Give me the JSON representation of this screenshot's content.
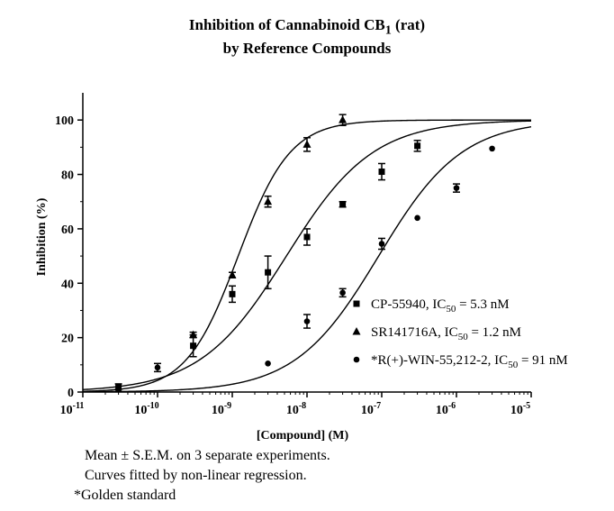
{
  "chart_data": {
    "type": "scatter",
    "title_line1": "Inhibition of Cannabinoid CB",
    "title_sub": "1",
    "title_tail": " (rat)",
    "title_line2": "by Reference Compounds",
    "xlabel": "[Compound] (M)",
    "ylabel": "Inhibition (%)",
    "x_scale": "log",
    "xlim": [
      1e-11,
      1e-05
    ],
    "ylim": [
      0,
      110
    ],
    "x_ticks": [
      1e-11,
      1e-10,
      1e-09,
      1e-08,
      1e-07,
      1e-06,
      1e-05
    ],
    "x_tick_labels": [
      {
        "base": "10",
        "exp": "-11"
      },
      {
        "base": "10",
        "exp": "-10"
      },
      {
        "base": "10",
        "exp": "-9"
      },
      {
        "base": "10",
        "exp": "-8"
      },
      {
        "base": "10",
        "exp": "-7"
      },
      {
        "base": "10",
        "exp": "-6"
      },
      {
        "base": "10",
        "exp": "-5"
      }
    ],
    "y_ticks": [
      0,
      20,
      40,
      60,
      80,
      100
    ],
    "grid": false,
    "legend_position": "bottom-right",
    "series": [
      {
        "name_main": "CP-55940, IC",
        "name_sub": "50",
        "name_tail": " = 5.3 nM",
        "marker": "square",
        "ic50": 5.3e-09,
        "hill": 0.75,
        "top": 100,
        "bottom": 0,
        "points": [
          {
            "x": 3e-11,
            "y": 2,
            "err": 1
          },
          {
            "x": 3e-10,
            "y": 17,
            "err": 4
          },
          {
            "x": 1e-09,
            "y": 36,
            "err": 3
          },
          {
            "x": 3e-09,
            "y": 44,
            "err": 6
          },
          {
            "x": 1e-08,
            "y": 57,
            "err": 3
          },
          {
            "x": 3e-08,
            "y": 69,
            "err": 1
          },
          {
            "x": 1e-07,
            "y": 81,
            "err": 3
          },
          {
            "x": 3e-07,
            "y": 90.5,
            "err": 2
          }
        ]
      },
      {
        "name_main": "SR141716A, IC",
        "name_sub": "50",
        "name_tail": " = 1.2 nM",
        "marker": "triangle",
        "ic50": 1.2e-09,
        "hill": 1.25,
        "top": 100,
        "bottom": 0,
        "points": [
          {
            "x": 3e-11,
            "y": 1,
            "err": 0.5
          },
          {
            "x": 3e-10,
            "y": 21,
            "err": 1
          },
          {
            "x": 1e-09,
            "y": 43,
            "err": 1
          },
          {
            "x": 3e-09,
            "y": 70,
            "err": 2
          },
          {
            "x": 1e-08,
            "y": 91,
            "err": 2.5
          },
          {
            "x": 3e-08,
            "y": 100,
            "err": 2
          }
        ]
      },
      {
        "name_main": "*R(+)-WIN-55,212-2, IC",
        "name_sub": "50",
        "name_tail": " = 91 nM",
        "marker": "circle",
        "ic50": 9.1e-08,
        "hill": 0.78,
        "top": 100,
        "bottom": 0,
        "points": [
          {
            "x": 1e-10,
            "y": 9,
            "err": 1.5
          },
          {
            "x": 3e-09,
            "y": 10.5,
            "err": 0.5
          },
          {
            "x": 1e-08,
            "y": 26,
            "err": 2.5
          },
          {
            "x": 3e-08,
            "y": 36.5,
            "err": 1.5
          },
          {
            "x": 1e-07,
            "y": 54.5,
            "err": 2
          },
          {
            "x": 3e-07,
            "y": 64,
            "err": 0.5
          },
          {
            "x": 1e-06,
            "y": 75,
            "err": 1.5
          },
          {
            "x": 3e-06,
            "y": 89.5,
            "err": 0.5
          }
        ]
      }
    ]
  },
  "footnotes": {
    "line1": "Mean ± S.E.M. on 3 separate experiments.",
    "line2": "Curves fitted by non-linear regression.",
    "line3": "*Golden standard"
  }
}
